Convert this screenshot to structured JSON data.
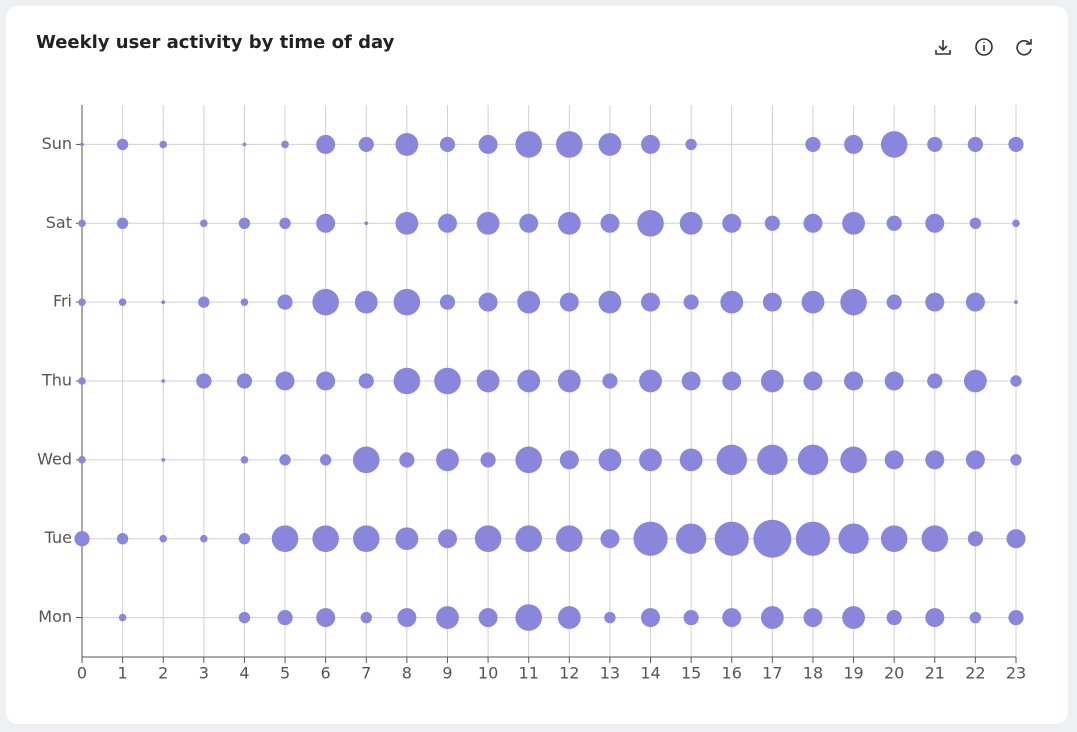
{
  "chart_data": {
    "type": "bubble",
    "title": "Weekly user activity by time of day",
    "color": "#8a86db",
    "grid": true,
    "x": [
      0,
      1,
      2,
      3,
      4,
      5,
      6,
      7,
      8,
      9,
      10,
      11,
      12,
      13,
      14,
      15,
      16,
      17,
      18,
      19,
      20,
      21,
      22,
      23
    ],
    "xlim": [
      0,
      23
    ],
    "xticks": [
      0,
      1,
      2,
      3,
      4,
      5,
      6,
      7,
      8,
      9,
      10,
      11,
      12,
      13,
      14,
      15,
      16,
      17,
      18,
      19,
      20,
      21,
      22,
      23
    ],
    "series": [
      {
        "name": "Mon",
        "values": [
          0,
          2,
          0,
          0,
          3,
          4,
          5,
          3,
          5,
          6,
          5,
          7,
          6,
          3,
          5,
          4,
          5,
          6,
          5,
          6,
          4,
          5,
          3,
          4
        ]
      },
      {
        "name": "Tue",
        "values": [
          4,
          3,
          2,
          2,
          3,
          7,
          7,
          7,
          6,
          5,
          7,
          7,
          7,
          5,
          9,
          8,
          9,
          10,
          9,
          8,
          7,
          7,
          4,
          5
        ]
      },
      {
        "name": "Wed",
        "values": [
          2,
          0,
          1,
          0,
          2,
          3,
          3,
          7,
          4,
          6,
          4,
          7,
          5,
          6,
          6,
          6,
          8,
          8,
          8,
          7,
          5,
          5,
          5,
          3
        ]
      },
      {
        "name": "Thu",
        "values": [
          2,
          0,
          1,
          4,
          4,
          5,
          5,
          4,
          7,
          7,
          6,
          6,
          6,
          4,
          6,
          5,
          5,
          6,
          5,
          5,
          5,
          4,
          6,
          3
        ]
      },
      {
        "name": "Fri",
        "values": [
          2,
          2,
          1,
          3,
          2,
          4,
          7,
          6,
          7,
          4,
          5,
          6,
          5,
          6,
          5,
          4,
          6,
          5,
          6,
          7,
          4,
          5,
          5,
          1
        ]
      },
      {
        "name": "Sat",
        "values": [
          2,
          3,
          0,
          2,
          3,
          3,
          5,
          1,
          6,
          5,
          6,
          5,
          6,
          5,
          7,
          6,
          5,
          4,
          5,
          6,
          4,
          5,
          3,
          2
        ]
      },
      {
        "name": "Sun",
        "values": [
          1,
          3,
          2,
          0,
          1,
          2,
          5,
          4,
          6,
          4,
          5,
          7,
          7,
          6,
          5,
          3,
          0,
          0,
          4,
          5,
          7,
          4,
          4,
          4
        ]
      }
    ]
  }
}
